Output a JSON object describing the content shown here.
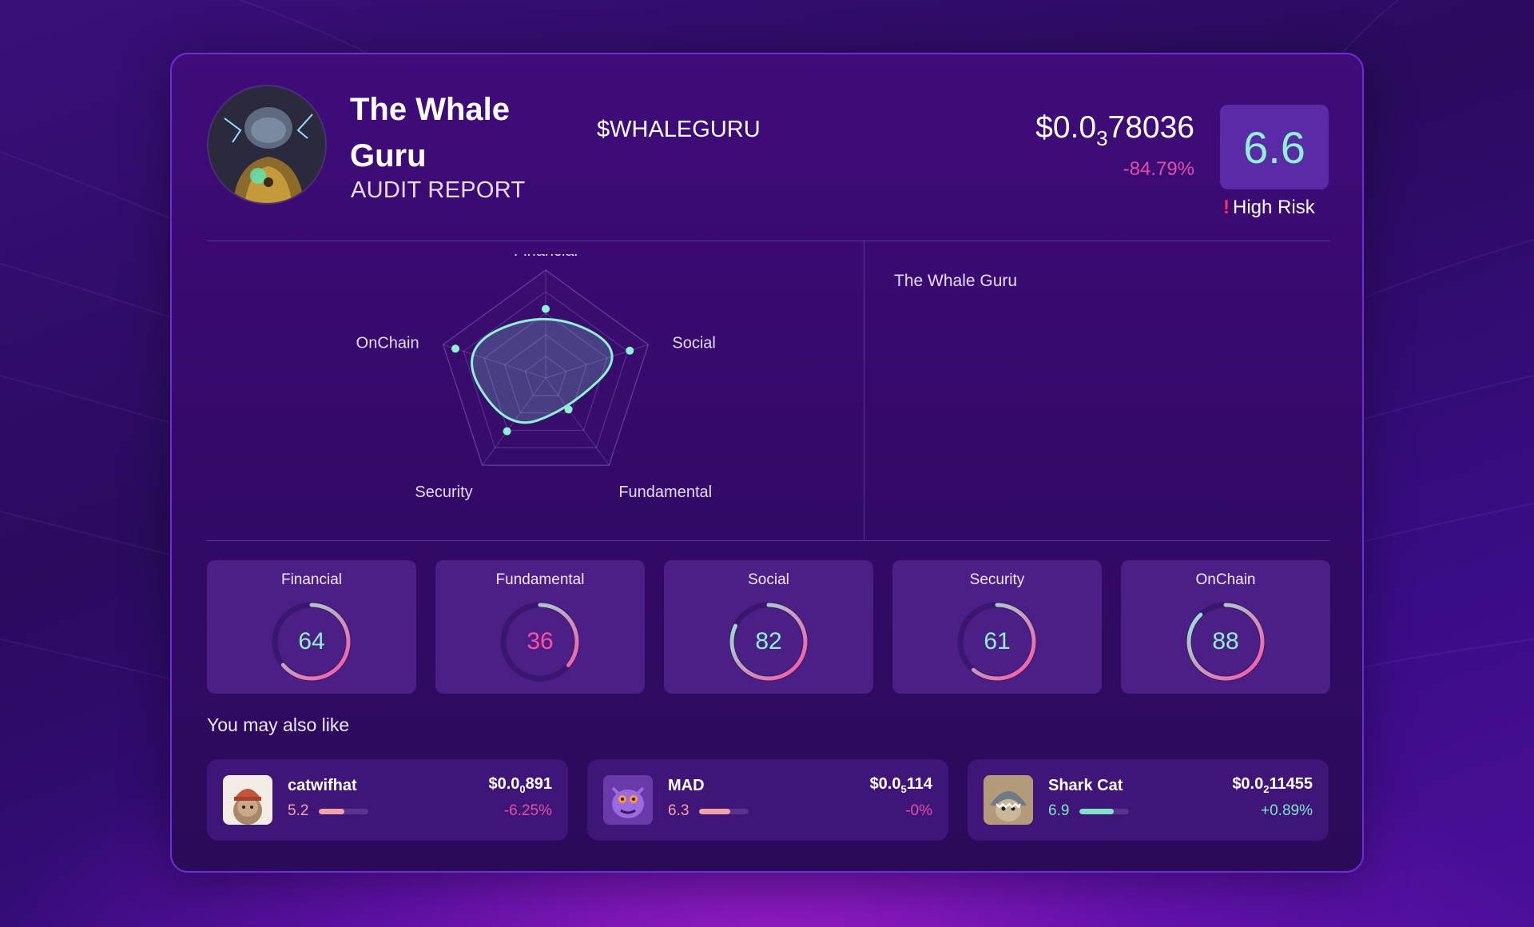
{
  "colors": {
    "accent_teal": "#8ef0d4",
    "negative": "#e24fa8",
    "positive": "#7ee3c9",
    "ring_pink": "#ff4fa3",
    "risk_icon": "#ff3355"
  },
  "header": {
    "title": "The Whale Guru",
    "subtitle": "AUDIT REPORT",
    "ticker": "$WHALEGURU",
    "price_prefix": "$0.0",
    "price_zeros": "3",
    "price_digits": "78036",
    "price_change": "-84.79%",
    "score": "6.6",
    "risk_label": "High Risk",
    "risk_icon": "exclamation-icon"
  },
  "side_panel": {
    "title": "The Whale Guru"
  },
  "radar": {
    "axes": [
      "Financial",
      "Social",
      "Fundamental",
      "Security",
      "OnChain"
    ],
    "values": [
      64,
      82,
      36,
      61,
      88
    ],
    "max": 100
  },
  "categories": [
    {
      "name": "Financial",
      "value": 64
    },
    {
      "name": "Fundamental",
      "value": 36
    },
    {
      "name": "Social",
      "value": 82
    },
    {
      "name": "Security",
      "value": 61
    },
    {
      "name": "OnChain",
      "value": 88
    }
  ],
  "recommendations": {
    "heading": "You may also like",
    "items": [
      {
        "name": "catwifhat",
        "score": "5.2",
        "score_fraction": 0.52,
        "price_prefix": "$0.0",
        "price_zeros": "0",
        "price_digits": "891",
        "change": "-6.25%",
        "trend": "negative",
        "thumb_icon": "cat-hat-icon"
      },
      {
        "name": "MAD",
        "score": "6.3",
        "score_fraction": 0.63,
        "price_prefix": "$0.0",
        "price_zeros": "5",
        "price_digits": "114",
        "change": "-0%",
        "trend": "negative",
        "thumb_icon": "monster-icon"
      },
      {
        "name": "Shark Cat",
        "score": "6.9",
        "score_fraction": 0.69,
        "price_prefix": "$0.0",
        "price_zeros": "2",
        "price_digits": "11455",
        "change": "+0.89%",
        "trend": "positive",
        "thumb_icon": "shark-cat-icon"
      }
    ]
  }
}
